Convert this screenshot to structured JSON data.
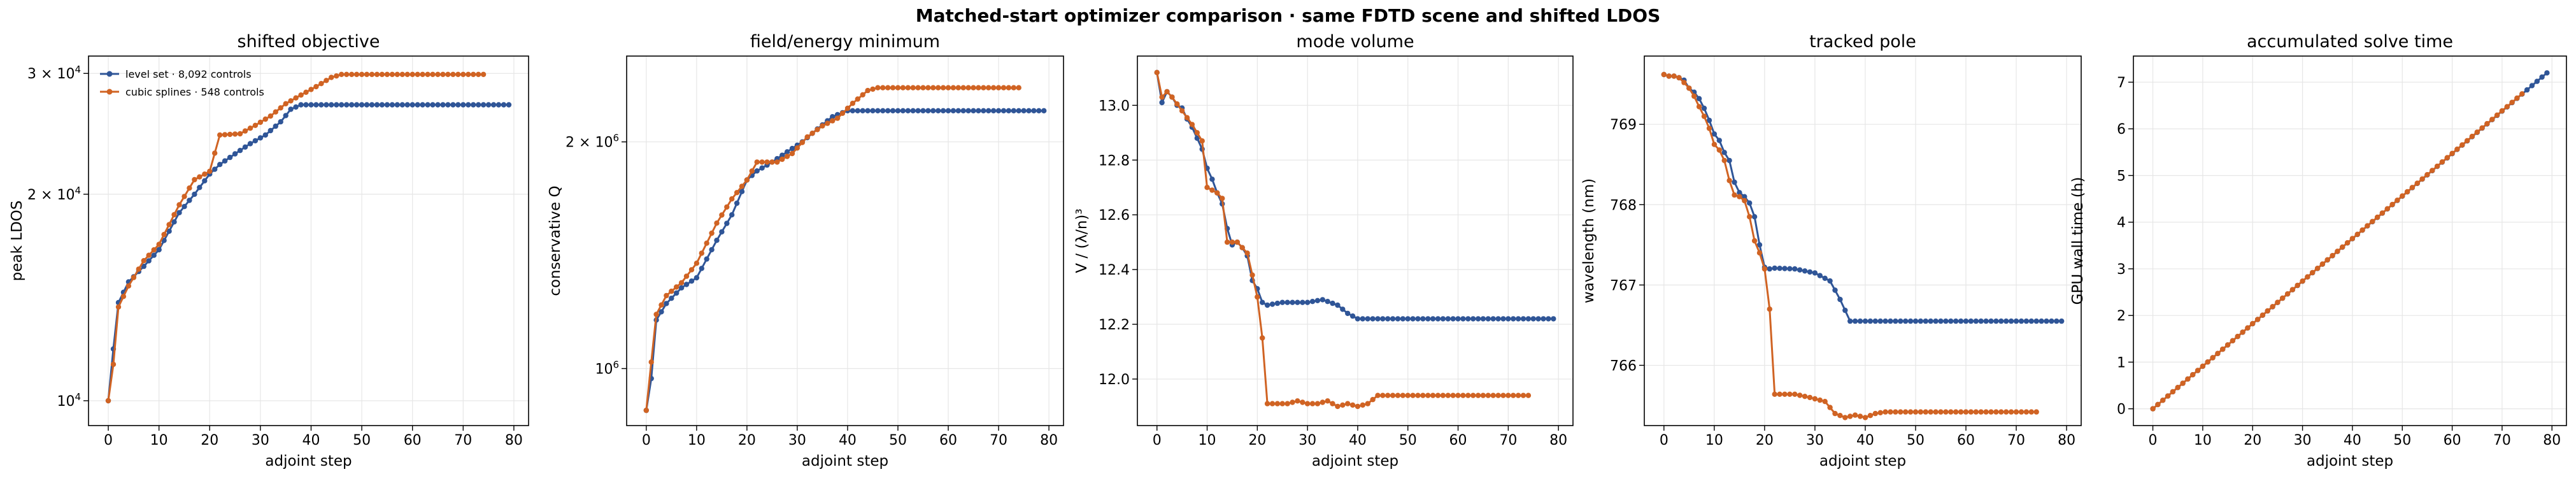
{
  "suptitle": "Matched-start optimizer comparison · same FDTD scene and shifted LDOS",
  "colors": {
    "level_set": "#2f5597",
    "splines": "#d06323",
    "grid": "#e6e6e6"
  },
  "chart_data": [
    {
      "type": "line",
      "title": "shifted objective",
      "xlabel": "adjoint step",
      "ylabel": "peak LDOS",
      "xlim": [
        -3.9,
        82.9
      ],
      "ylim": [
        9200,
        31800
      ],
      "yscale": "log",
      "xticks": [
        0,
        10,
        20,
        30,
        40,
        50,
        60,
        70,
        80
      ],
      "yticks": [
        {
          "value": 10000,
          "label": "10^4"
        },
        {
          "value": 20000,
          "label": "2 × 10^4"
        },
        {
          "value": 30000,
          "label": "3 × 10^4"
        }
      ],
      "grid": true,
      "legend": "top-left",
      "series": [
        {
          "name": "level set · 8,092 controls",
          "color": "#2f5597",
          "x": [
            0,
            1,
            2,
            4,
            7,
            10,
            14,
            17,
            20,
            22,
            25,
            28,
            31,
            34,
            36,
            38,
            79
          ],
          "y": [
            10000,
            11900,
            13900,
            14900,
            15700,
            16600,
            18800,
            20000,
            21400,
            22100,
            22900,
            23700,
            24400,
            25500,
            26600,
            27000,
            27000
          ]
        },
        {
          "name": "cubic splines · 548 controls",
          "color": "#d06323",
          "x": [
            0,
            1,
            2,
            4,
            7,
            10,
            14,
            17,
            20,
            22,
            26,
            29,
            32,
            35,
            38,
            41,
            44,
            46,
            74
          ],
          "y": [
            10000,
            11300,
            13700,
            14700,
            16000,
            16900,
            19300,
            21000,
            21600,
            24400,
            24500,
            25200,
            26000,
            27100,
            27900,
            28700,
            29600,
            29900,
            29900
          ]
        }
      ]
    },
    {
      "type": "line",
      "title": "field/energy minimum",
      "xlabel": "adjoint step",
      "ylabel": "conservative Q",
      "xlim": [
        -3.9,
        82.9
      ],
      "ylim": [
        840000,
        2600000
      ],
      "yscale": "log",
      "xticks": [
        0,
        10,
        20,
        30,
        40,
        50,
        60,
        70,
        80
      ],
      "yticks": [
        {
          "value": 1000000,
          "label": "10^6"
        },
        {
          "value": 2000000,
          "label": "2 × 10^6"
        }
      ],
      "grid": true,
      "series": [
        {
          "name": "level set · 8,092 controls",
          "color": "#2f5597",
          "x": [
            0,
            1,
            2,
            4,
            7,
            10,
            14,
            17,
            20,
            22,
            25,
            28,
            31,
            34,
            37,
            40,
            79
          ],
          "y": [
            880000,
            970000,
            1160000,
            1220000,
            1280000,
            1320000,
            1480000,
            1600000,
            1780000,
            1830000,
            1880000,
            1940000,
            2000000,
            2080000,
            2160000,
            2200000,
            2200000
          ]
        },
        {
          "name": "cubic splines · 548 controls",
          "color": "#d06323",
          "x": [
            0,
            1,
            2,
            4,
            7,
            10,
            14,
            17,
            20,
            22,
            26,
            29,
            32,
            35,
            38,
            41,
            44,
            46,
            74
          ],
          "y": [
            880000,
            1020000,
            1180000,
            1250000,
            1300000,
            1380000,
            1560000,
            1680000,
            1780000,
            1880000,
            1880000,
            1930000,
            2030000,
            2100000,
            2150000,
            2250000,
            2340000,
            2360000,
            2360000
          ]
        }
      ]
    },
    {
      "type": "line",
      "title": "mode volume",
      "xlabel": "adjoint step",
      "ylabel": "V / (λ/n)³",
      "xlim": [
        -3.9,
        82.9
      ],
      "ylim": [
        11.83,
        13.18
      ],
      "yscale": "linear",
      "xticks": [
        0,
        10,
        20,
        30,
        40,
        50,
        60,
        70,
        80
      ],
      "yticks": [
        {
          "value": 12.0,
          "label": "12.0"
        },
        {
          "value": 12.2,
          "label": "12.2"
        },
        {
          "value": 12.4,
          "label": "12.4"
        },
        {
          "value": 12.6,
          "label": "12.6"
        },
        {
          "value": 12.8,
          "label": "12.8"
        },
        {
          "value": 13.0,
          "label": "13.0"
        }
      ],
      "grid": true,
      "series": [
        {
          "name": "level set · 8,092 controls",
          "color": "#2f5597",
          "x": [
            0,
            1,
            2,
            3,
            4,
            5,
            6,
            7,
            8,
            9,
            10,
            11,
            12,
            13,
            14,
            15,
            16,
            17,
            18,
            19,
            20,
            21,
            22,
            25,
            30,
            33,
            36,
            38,
            40,
            79
          ],
          "y": [
            13.12,
            13.01,
            13.05,
            13.03,
            13.0,
            12.99,
            12.95,
            12.92,
            12.88,
            12.84,
            12.77,
            12.73,
            12.68,
            12.64,
            12.55,
            12.49,
            12.5,
            12.48,
            12.45,
            12.36,
            12.33,
            12.28,
            12.27,
            12.28,
            12.28,
            12.29,
            12.27,
            12.24,
            12.22,
            12.22
          ]
        },
        {
          "name": "cubic splines · 548 controls",
          "color": "#d06323",
          "x": [
            0,
            1,
            2,
            3,
            5,
            7,
            9,
            10,
            12,
            13,
            14,
            16,
            18,
            19,
            20,
            21,
            22,
            23,
            26,
            28,
            30,
            32,
            34,
            36,
            38,
            40,
            42,
            44,
            74
          ],
          "y": [
            13.12,
            13.03,
            13.05,
            13.03,
            12.98,
            12.93,
            12.87,
            12.7,
            12.68,
            12.66,
            12.5,
            12.5,
            12.46,
            12.38,
            12.3,
            12.15,
            11.91,
            11.91,
            11.91,
            11.92,
            11.91,
            11.91,
            11.92,
            11.9,
            11.91,
            11.9,
            11.91,
            11.94,
            11.94
          ]
        }
      ]
    },
    {
      "type": "line",
      "title": "tracked pole",
      "xlabel": "adjoint step",
      "ylabel": "wavelength (nm)",
      "xlim": [
        -3.9,
        82.9
      ],
      "ylim": [
        765.25,
        769.85
      ],
      "yscale": "linear",
      "xticks": [
        0,
        10,
        20,
        30,
        40,
        50,
        60,
        70,
        80
      ],
      "yticks": [
        {
          "value": 766,
          "label": "766"
        },
        {
          "value": 767,
          "label": "767"
        },
        {
          "value": 768,
          "label": "768"
        },
        {
          "value": 769,
          "label": "769"
        }
      ],
      "grid": true,
      "series": [
        {
          "name": "level set · 8,092 controls",
          "color": "#2f5597",
          "x": [
            0,
            1,
            2,
            3,
            4,
            5,
            6,
            7,
            8,
            9,
            10,
            11,
            12,
            13,
            14,
            15,
            16,
            17,
            18,
            19,
            20,
            21,
            22,
            26,
            30,
            33,
            35,
            37,
            79
          ],
          "y": [
            769.62,
            769.6,
            769.6,
            769.58,
            769.55,
            769.45,
            769.4,
            769.32,
            769.2,
            769.05,
            768.88,
            768.8,
            768.65,
            768.55,
            768.28,
            768.15,
            768.1,
            768.02,
            767.85,
            767.5,
            767.22,
            767.2,
            767.21,
            767.2,
            767.15,
            767.05,
            766.82,
            766.55,
            766.55
          ]
        },
        {
          "name": "cubic splines · 548 controls",
          "color": "#d06323",
          "x": [
            0,
            1,
            2,
            3,
            4,
            5,
            6,
            7,
            8,
            9,
            10,
            11,
            12,
            13,
            14,
            15,
            16,
            17,
            18,
            19,
            20,
            21,
            22,
            26,
            29,
            32,
            34,
            36,
            38,
            40,
            42,
            44,
            74
          ],
          "y": [
            769.62,
            769.6,
            769.6,
            769.58,
            769.52,
            769.45,
            769.35,
            769.22,
            769.1,
            768.95,
            768.75,
            768.68,
            768.55,
            768.3,
            768.12,
            768.1,
            768.05,
            767.85,
            767.55,
            767.4,
            767.2,
            766.7,
            765.64,
            765.64,
            765.6,
            765.55,
            765.4,
            765.35,
            765.38,
            765.35,
            765.4,
            765.42,
            765.42
          ]
        }
      ]
    },
    {
      "type": "line",
      "title": "accumulated solve time",
      "xlabel": "adjoint step",
      "ylabel": "GPU wall time (h)",
      "xlim": [
        -3.9,
        82.9
      ],
      "ylim": [
        -0.36,
        7.56
      ],
      "yscale": "linear",
      "xticks": [
        0,
        10,
        20,
        30,
        40,
        50,
        60,
        70,
        80
      ],
      "yticks": [
        {
          "value": 0,
          "label": "0"
        },
        {
          "value": 1,
          "label": "1"
        },
        {
          "value": 2,
          "label": "2"
        },
        {
          "value": 3,
          "label": "3"
        },
        {
          "value": 4,
          "label": "4"
        },
        {
          "value": 5,
          "label": "5"
        },
        {
          "value": 6,
          "label": "6"
        },
        {
          "value": 7,
          "label": "7"
        }
      ],
      "grid": true,
      "series": [
        {
          "name": "level set · 8,092 controls",
          "color": "#2f5597",
          "x": [
            0,
            79
          ],
          "y": [
            0,
            7.2
          ]
        },
        {
          "name": "cubic splines · 548 controls",
          "color": "#d06323",
          "x": [
            0,
            74
          ],
          "y": [
            0,
            6.75
          ]
        }
      ]
    }
  ]
}
